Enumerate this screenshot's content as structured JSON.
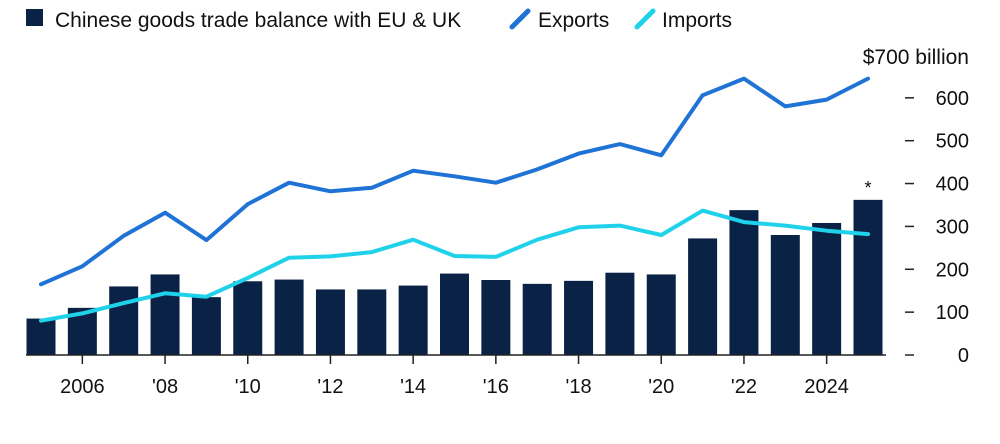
{
  "chart_data": {
    "type": "bar+line",
    "title": "",
    "unit_label": "$700 billion",
    "xlabel": "",
    "ylabel": "",
    "ylim": [
      0,
      700
    ],
    "y_ticks": [
      0,
      100,
      200,
      300,
      400,
      500,
      600
    ],
    "y_tick_labels": [
      "0",
      "100",
      "200",
      "300",
      "400",
      "500",
      "600"
    ],
    "years": [
      2005,
      2006,
      2007,
      2008,
      2009,
      2010,
      2011,
      2012,
      2013,
      2014,
      2015,
      2016,
      2017,
      2018,
      2019,
      2020,
      2021,
      2022,
      2023,
      2024,
      2025
    ],
    "x_ticks": [
      {
        "year": 2006,
        "label": "2006"
      },
      {
        "year": 2008,
        "label": "'08"
      },
      {
        "year": 2010,
        "label": "'10"
      },
      {
        "year": 2012,
        "label": "'12"
      },
      {
        "year": 2014,
        "label": "'14"
      },
      {
        "year": 2016,
        "label": "'16"
      },
      {
        "year": 2018,
        "label": "'18"
      },
      {
        "year": 2020,
        "label": "'20"
      },
      {
        "year": 2022,
        "label": "'22"
      },
      {
        "year": 2024,
        "label": "2024"
      }
    ],
    "series": [
      {
        "name": "Chinese goods trade balance with EU & UK",
        "kind": "bar",
        "color": "#0b2247",
        "values": [
          85,
          110,
          160,
          188,
          135,
          172,
          176,
          153,
          153,
          162,
          190,
          175,
          166,
          173,
          192,
          188,
          272,
          338,
          280,
          308,
          362
        ]
      },
      {
        "name": "Exports",
        "kind": "line",
        "color": "#1f73d6",
        "values": [
          165,
          207,
          278,
          332,
          268,
          352,
          402,
          382,
          390,
          430,
          417,
          402,
          433,
          470,
          492,
          466,
          606,
          645,
          580,
          596,
          645
        ]
      },
      {
        "name": "Imports",
        "kind": "line",
        "color": "#1fd2ea",
        "values": [
          80,
          97,
          121,
          144,
          136,
          180,
          227,
          230,
          240,
          269,
          231,
          229,
          269,
          298,
          302,
          280,
          337,
          310,
          302,
          290,
          282
        ]
      }
    ],
    "annotations": [
      {
        "year": 2025,
        "text": "*"
      }
    ]
  }
}
